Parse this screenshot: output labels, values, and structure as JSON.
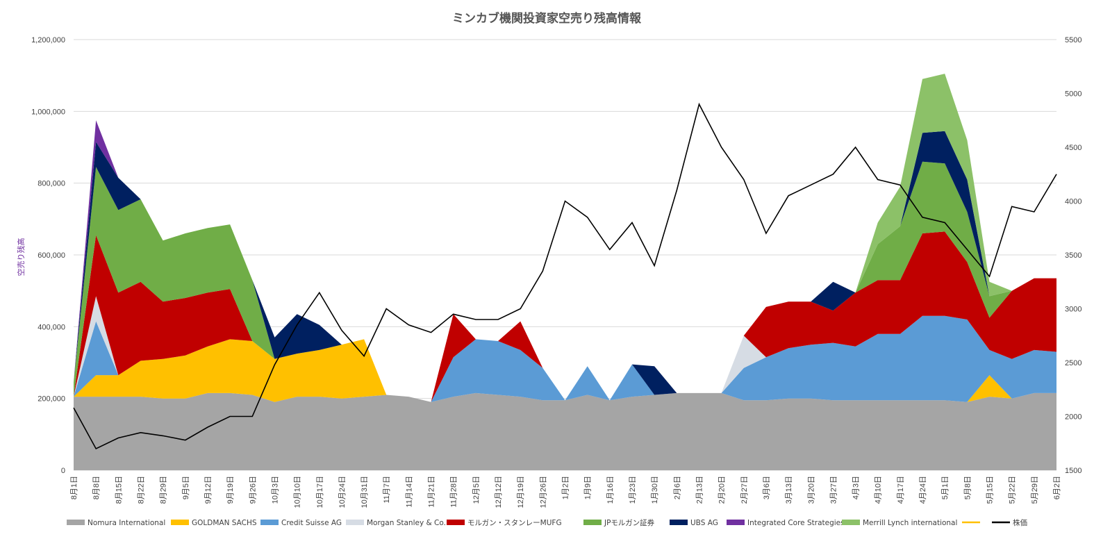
{
  "chart_data": {
    "type": "area",
    "title": "ミンカブ機関投資家空売り残高情報",
    "ylabel": "空売り残高",
    "ylim": [
      0,
      1200000
    ],
    "y2lim": [
      1500,
      5500
    ],
    "yticks": [
      "0",
      "200,000",
      "400,000",
      "600,000",
      "800,000",
      "1,000,000",
      "1,200,000"
    ],
    "y2ticks": [
      "1500",
      "2000",
      "2500",
      "3000",
      "3500",
      "4000",
      "4500",
      "5000",
      "5500"
    ],
    "grid": true,
    "legend_position": "bottom",
    "x": [
      "8月1日",
      "8月8日",
      "8月15日",
      "8月22日",
      "8月29日",
      "9月5日",
      "9月12日",
      "9月19日",
      "9月26日",
      "10月3日",
      "10月10日",
      "10月17日",
      "10月24日",
      "10月31日",
      "11月7日",
      "11月14日",
      "11月21日",
      "11月28日",
      "12月5日",
      "12月12日",
      "12月19日",
      "12月26日",
      "1月2日",
      "1月9日",
      "1月16日",
      "1月23日",
      "1月30日",
      "2月6日",
      "2月13日",
      "2月20日",
      "2月27日",
      "3月6日",
      "3月13日",
      "3月20日",
      "3月27日",
      "4月3日",
      "4月10日",
      "4月17日",
      "4月24日",
      "5月1日",
      "5月8日",
      "5月15日",
      "5月22日",
      "5月29日",
      "6月2日"
    ],
    "series": [
      {
        "name": "Nomura International",
        "color": "#a5a5a5",
        "values": [
          205000,
          205000,
          205000,
          205000,
          200000,
          200000,
          215000,
          215000,
          210000,
          190000,
          205000,
          205000,
          200000,
          205000,
          210000,
          205000,
          190000,
          205000,
          215000,
          210000,
          205000,
          195000,
          195000,
          210000,
          195000,
          205000,
          210000,
          215000,
          215000,
          215000,
          195000,
          195000,
          200000,
          200000,
          195000,
          195000,
          195000,
          195000,
          195000,
          195000,
          190000,
          205000,
          200000,
          215000,
          215000
        ]
      },
      {
        "name": "GOLDMAN SACHS",
        "color": "#ffc000",
        "values": [
          0,
          60000,
          60000,
          100000,
          110000,
          120000,
          130000,
          150000,
          150000,
          120000,
          120000,
          130000,
          150000,
          160000,
          0,
          0,
          0,
          0,
          0,
          0,
          0,
          0,
          0,
          0,
          0,
          0,
          0,
          0,
          0,
          0,
          0,
          0,
          0,
          0,
          0,
          0,
          0,
          0,
          0,
          0,
          0,
          60000,
          0,
          0,
          0
        ]
      },
      {
        "name": "Credit Suisse AG",
        "color": "#5b9bd5",
        "values": [
          0,
          150000,
          0,
          0,
          0,
          0,
          0,
          0,
          0,
          0,
          0,
          0,
          0,
          0,
          0,
          0,
          0,
          110000,
          150000,
          150000,
          130000,
          90000,
          0,
          80000,
          0,
          90000,
          0,
          0,
          0,
          0,
          90000,
          120000,
          140000,
          150000,
          160000,
          150000,
          185000,
          185000,
          235000,
          235000,
          230000,
          70000,
          110000,
          120000,
          115000
        ]
      },
      {
        "name": "Morgan Stanley & Co.",
        "color": "#d6dce4",
        "values": [
          0,
          70000,
          0,
          0,
          0,
          0,
          0,
          0,
          0,
          0,
          0,
          0,
          0,
          0,
          0,
          0,
          0,
          0,
          0,
          0,
          0,
          0,
          0,
          0,
          0,
          0,
          0,
          0,
          0,
          0,
          90000,
          0,
          0,
          0,
          0,
          0,
          0,
          0,
          0,
          0,
          0,
          0,
          0,
          0,
          0
        ]
      },
      {
        "name": "モルガン・スタンレーMUFG",
        "color": "#c00000",
        "values": [
          0,
          170000,
          230000,
          220000,
          160000,
          160000,
          150000,
          140000,
          0,
          0,
          0,
          0,
          0,
          0,
          0,
          0,
          0,
          120000,
          0,
          0,
          80000,
          0,
          0,
          0,
          0,
          0,
          0,
          0,
          0,
          0,
          0,
          140000,
          130000,
          120000,
          90000,
          150000,
          150000,
          150000,
          230000,
          235000,
          160000,
          90000,
          190000,
          200000,
          205000
        ]
      },
      {
        "name": "JPモルガン証券",
        "color": "#70ad47",
        "values": [
          40000,
          190000,
          230000,
          230000,
          170000,
          180000,
          180000,
          180000,
          170000,
          0,
          0,
          0,
          0,
          0,
          0,
          0,
          0,
          0,
          0,
          0,
          0,
          0,
          0,
          0,
          0,
          0,
          0,
          0,
          0,
          0,
          0,
          0,
          0,
          0,
          0,
          0,
          100000,
          150000,
          200000,
          190000,
          140000,
          60000,
          0,
          0,
          0
        ]
      },
      {
        "name": "UBS AG",
        "color": "#002060",
        "values": [
          0,
          70000,
          90000,
          0,
          0,
          0,
          0,
          0,
          0,
          60000,
          110000,
          70000,
          0,
          0,
          0,
          0,
          0,
          0,
          0,
          0,
          0,
          0,
          0,
          0,
          0,
          0,
          80000,
          0,
          0,
          0,
          0,
          0,
          0,
          0,
          80000,
          0,
          0,
          0,
          80000,
          90000,
          90000,
          0,
          0,
          0,
          0
        ]
      },
      {
        "name": "Integrated Core Strategies",
        "color": "#7030a0",
        "values": [
          0,
          60000,
          0,
          0,
          0,
          0,
          0,
          0,
          0,
          0,
          0,
          0,
          0,
          0,
          0,
          0,
          0,
          0,
          0,
          0,
          0,
          0,
          0,
          0,
          0,
          0,
          0,
          0,
          0,
          0,
          0,
          0,
          0,
          0,
          0,
          0,
          0,
          0,
          0,
          0,
          0,
          0,
          0,
          0,
          0
        ]
      },
      {
        "name": "Merrill Lynch international",
        "color": "#8cc168",
        "values": [
          0,
          0,
          0,
          0,
          0,
          0,
          0,
          0,
          0,
          0,
          0,
          0,
          0,
          0,
          0,
          0,
          0,
          0,
          0,
          0,
          0,
          0,
          0,
          0,
          0,
          0,
          0,
          0,
          0,
          0,
          0,
          0,
          0,
          0,
          0,
          0,
          60000,
          110000,
          150000,
          160000,
          110000,
          40000,
          0,
          0,
          0
        ]
      }
    ],
    "price_series": {
      "name": "株価",
      "color": "#000000",
      "values": [
        2080,
        1700,
        1800,
        1850,
        1820,
        1780,
        1900,
        2000,
        2000,
        2480,
        2850,
        3150,
        2800,
        2560,
        3000,
        2850,
        2780,
        2950,
        2900,
        2900,
        3000,
        3350,
        4000,
        3850,
        3550,
        3800,
        3400,
        4100,
        4900,
        4500,
        4200,
        3700,
        4050,
        4150,
        4250,
        4500,
        4200,
        4150,
        3850,
        3800,
        3550,
        3300,
        3950,
        3900,
        4250
      ]
    },
    "legend_extra": [
      {
        "name": "",
        "color": "#ffc000",
        "kind": "line"
      }
    ]
  }
}
